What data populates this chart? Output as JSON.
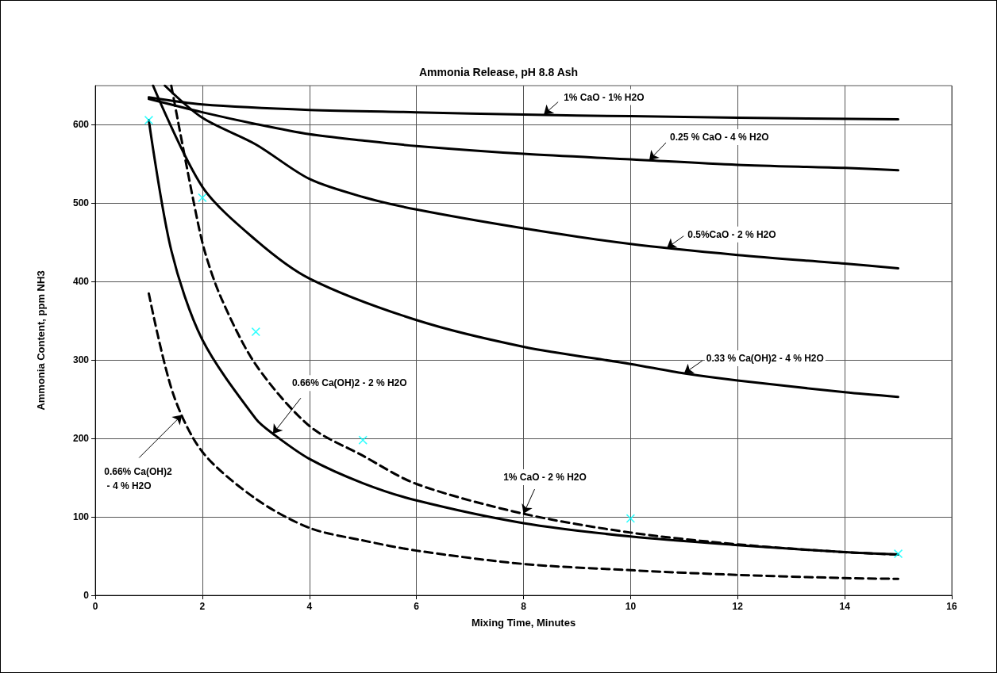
{
  "chart_data": {
    "type": "line",
    "title": "Ammonia Release, pH 8.8 Ash",
    "xlabel": "Mixing Time, Minutes",
    "ylabel": "Ammonia Content, ppm NH3",
    "xlim": [
      0,
      16
    ],
    "xticks": [
      0,
      2,
      4,
      6,
      8,
      10,
      12,
      14,
      16
    ],
    "ylim": [
      0,
      650
    ],
    "yticks": [
      0,
      100,
      200,
      300,
      400,
      500,
      600
    ],
    "grid": true,
    "series": [
      {
        "color": "#000000",
        "line_style": "solid",
        "x": [
          1,
          2,
          4,
          6,
          8,
          10,
          12,
          15
        ],
        "values": [
          635,
          626,
          619,
          616,
          613,
          611,
          609,
          607
        ]
      },
      {
        "color": "#000000",
        "line_style": "solid",
        "x": [
          1,
          2,
          3,
          4,
          5,
          6,
          8,
          10,
          12,
          14,
          15
        ],
        "values": [
          633,
          616,
          601,
          588,
          580,
          573,
          563,
          556,
          549,
          545,
          542
        ]
      },
      {
        "color": "#000000",
        "line_style": "solid",
        "x": [
          1.3,
          2,
          3,
          4,
          5,
          6,
          8,
          10,
          12,
          14,
          15
        ],
        "values": [
          650,
          609,
          575,
          531,
          508,
          492,
          468,
          448,
          434,
          423,
          417
        ]
      },
      {
        "color": "#000000",
        "line_style": "solid",
        "x": [
          1.08,
          2,
          3,
          4,
          6,
          8,
          10,
          11,
          12,
          14,
          15
        ],
        "values": [
          650,
          521,
          453,
          404,
          351,
          317,
          295,
          283,
          274,
          259,
          253
        ]
      },
      {
        "color": "#000000",
        "line_style": "dashed",
        "x": [
          1.42,
          1.82,
          2.04,
          2.36,
          3,
          4,
          5,
          6,
          8,
          10,
          12,
          14,
          15
        ],
        "values": [
          650,
          508,
          440,
          378,
          294,
          216,
          178,
          142,
          104,
          80,
          65,
          55,
          52
        ]
      },
      {
        "color": "#000000",
        "line_style": "solid",
        "x": [
          1,
          1.42,
          2,
          3,
          3.32,
          4,
          5,
          6,
          8,
          10,
          12,
          14,
          15
        ],
        "values": [
          606,
          440,
          326,
          225,
          206,
          174,
          143,
          121,
          92,
          75,
          64,
          55,
          52
        ]
      },
      {
        "color": "#000000",
        "line_style": "dashed",
        "x": [
          1,
          1.45,
          2,
          3,
          4,
          5,
          6,
          8,
          10,
          12,
          14,
          15
        ],
        "values": [
          385,
          258,
          183,
          123,
          86,
          70,
          57,
          40,
          32,
          26,
          22,
          21
        ]
      },
      {
        "type": "scatter",
        "color": "#00ffff",
        "marker": "cross",
        "x": [
          1,
          2,
          3,
          5,
          10,
          15
        ],
        "values": [
          606,
          507,
          336,
          198,
          98,
          53
        ]
      }
    ],
    "annotations": [
      {
        "text": "1% CaO - 1% H2O",
        "x": 8.38,
        "y": 613
      },
      {
        "text": "0.25 % CaO - 4 % H2O",
        "x": 10.35,
        "y": 555
      },
      {
        "text": "0.5%CaO - 2 % H2O",
        "x": 10.68,
        "y": 443
      },
      {
        "text": "0.33 % Ca(OH)2 - 4 % H2O",
        "x": 11,
        "y": 283
      },
      {
        "text": "0.66% Ca(OH)2 - 2 % H2O",
        "x": 3.32,
        "y": 206
      },
      {
        "text": "0.66% Ca(OH)2\n - 4 % H2O",
        "x": 1.62,
        "y": 230
      },
      {
        "text": "1% CaO - 2 % H2O",
        "x": 8,
        "y": 104
      }
    ]
  }
}
